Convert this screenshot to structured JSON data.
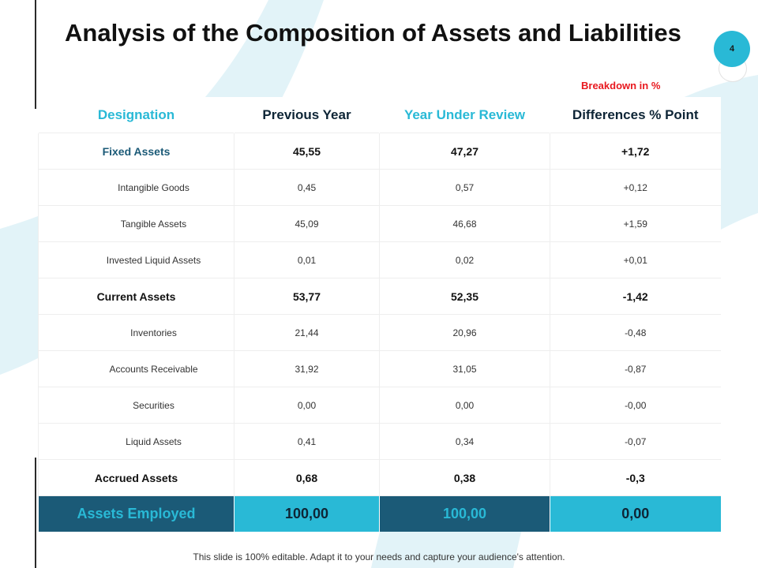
{
  "slide": {
    "title": "Analysis of the Composition of Assets and Liabilities",
    "page_number": "4",
    "breakdown_note": "Breakdown in %",
    "footer": "This slide is 100% editable. Adapt it to your needs and capture your audience's attention."
  },
  "table": {
    "headers": [
      "Designation",
      "Previous Year",
      "Year Under Review",
      "Differences % Point"
    ],
    "rows": [
      {
        "label": "Fixed Assets",
        "prev": "45,55",
        "curr": "47,27",
        "diff": "+1,72"
      },
      {
        "label": "Intangible Goods",
        "prev": "0,45",
        "curr": "0,57",
        "diff": "+0,12"
      },
      {
        "label": "Tangible Assets",
        "prev": "45,09",
        "curr": "46,68",
        "diff": "+1,59"
      },
      {
        "label": "Invested Liquid Assets",
        "prev": "0,01",
        "curr": "0,02",
        "diff": "+0,01"
      },
      {
        "label": "Current Assets",
        "prev": "53,77",
        "curr": "52,35",
        "diff": "-1,42"
      },
      {
        "label": "Inventories",
        "prev": "21,44",
        "curr": "20,96",
        "diff": "-0,48"
      },
      {
        "label": "Accounts Receivable",
        "prev": "31,92",
        "curr": "31,05",
        "diff": "-0,87"
      },
      {
        "label": "Securities",
        "prev": "0,00",
        "curr": "0,00",
        "diff": "-0,00"
      },
      {
        "label": "Liquid Assets",
        "prev": "0,41",
        "curr": "0,34",
        "diff": "-0,07"
      },
      {
        "label": "Accrued Assets",
        "prev": "0,68",
        "curr": "0,38",
        "diff": "-0,3"
      }
    ],
    "total": {
      "label": "Assets Employed",
      "prev": "100,00",
      "curr": "100,00",
      "diff": "0,00"
    }
  },
  "colors": {
    "dark_teal": "#1b5a77",
    "cyan": "#29b9d6",
    "background_arc": "#e2f3f8",
    "breakdown_red": "#e8191f"
  }
}
